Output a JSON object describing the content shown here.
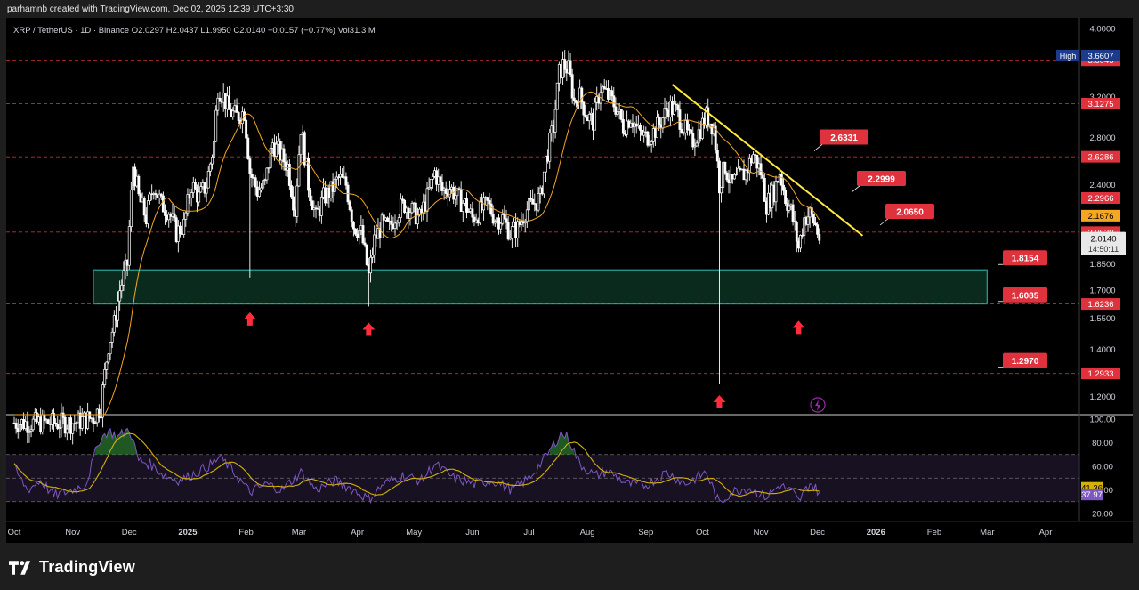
{
  "header": {
    "created_text": "parhamnb created with TradingView.com, Dec 02, 2025 12:39 UTC+3:30"
  },
  "symbol": {
    "legend": "XRP / TetherUS · 1D · Binance   O2.0297  H2.0437  L1.9950  C2.0140  −0.0157 (−0.77%)  Vol31.3 M"
  },
  "footer": {
    "brand": "TradingView"
  },
  "colors": {
    "background": "#000000",
    "candle": "#ffffff",
    "ma": "#f5a623",
    "trendline": "#ffeb3b",
    "level_line": "#e53935",
    "zone_border": "#26a69a",
    "zone_fill": "#0b2a1e",
    "label_red": "#e0323c",
    "rsi": "#7e57c2",
    "rsi_ma": "#d4b106",
    "rsi_band": "#2a1f3d"
  },
  "chart_data": [
    {
      "type": "candlestick",
      "pane": "price",
      "title": "XRP / TetherUS · 1D · Binance",
      "y_scale": "log",
      "ylim": [
        1.13,
        4.0
      ],
      "y_ticks": [
        "4.0000",
        "3.2000",
        "2.8000",
        "2.4000",
        "1.8500",
        "1.7000",
        "1.5500",
        "1.4000",
        "1.2000"
      ],
      "x_ticks": [
        "Oct",
        "Nov",
        "Dec",
        "2025",
        "Feb",
        "Mar",
        "Apr",
        "May",
        "Jun",
        "Jul",
        "Aug",
        "Sep",
        "Oct",
        "Nov",
        "Dec",
        "2026",
        "Feb",
        "Mar",
        "Apr"
      ],
      "last_price": {
        "value": "2.0140",
        "countdown": "14:50:11"
      },
      "price_markers": [
        {
          "label": "High",
          "value": "3.6607"
        },
        {
          "value": "2.1676",
          "kind": "ma"
        }
      ],
      "close_series": [
        {
          "date": "2024-10-01",
          "close": 1.1
        },
        {
          "date": "2024-10-15",
          "close": 1.1
        },
        {
          "date": "2024-11-01",
          "close": 1.1
        },
        {
          "date": "2024-11-12",
          "close": 1.12
        },
        {
          "date": "2024-11-16",
          "close": 1.16
        },
        {
          "date": "2024-11-20",
          "close": 1.42
        },
        {
          "date": "2024-11-23",
          "close": 1.52
        },
        {
          "date": "2024-11-26",
          "close": 1.7
        },
        {
          "date": "2024-11-30",
          "close": 1.85
        },
        {
          "date": "2024-12-03",
          "close": 2.55
        },
        {
          "date": "2024-12-06",
          "close": 2.3
        },
        {
          "date": "2024-12-10",
          "close": 2.15
        },
        {
          "date": "2024-12-14",
          "close": 2.4
        },
        {
          "date": "2024-12-18",
          "close": 2.25
        },
        {
          "date": "2024-12-22",
          "close": 2.2
        },
        {
          "date": "2024-12-26",
          "close": 2.05
        },
        {
          "date": "2024-12-30",
          "close": 2.1
        },
        {
          "date": "2025-01-03",
          "close": 2.4
        },
        {
          "date": "2025-01-07",
          "close": 2.3
        },
        {
          "date": "2025-01-11",
          "close": 2.4
        },
        {
          "date": "2025-01-15",
          "close": 2.75
        },
        {
          "date": "2025-01-17",
          "close": 3.3
        },
        {
          "date": "2025-01-20",
          "close": 3.2
        },
        {
          "date": "2025-01-23",
          "close": 3.05
        },
        {
          "date": "2025-01-27",
          "close": 3.0
        },
        {
          "date": "2025-01-31",
          "close": 3.05
        },
        {
          "date": "2025-02-03",
          "close": 2.5
        },
        {
          "date": "2025-02-07",
          "close": 2.35
        },
        {
          "date": "2025-02-11",
          "close": 2.4
        },
        {
          "date": "2025-02-15",
          "close": 2.75
        },
        {
          "date": "2025-02-19",
          "close": 2.65
        },
        {
          "date": "2025-02-23",
          "close": 2.55
        },
        {
          "date": "2025-02-27",
          "close": 2.2
        },
        {
          "date": "2025-03-02",
          "close": 2.9
        },
        {
          "date": "2025-03-06",
          "close": 2.4
        },
        {
          "date": "2025-03-10",
          "close": 2.15
        },
        {
          "date": "2025-03-14",
          "close": 2.3
        },
        {
          "date": "2025-03-18",
          "close": 2.35
        },
        {
          "date": "2025-03-22",
          "close": 2.45
        },
        {
          "date": "2025-03-26",
          "close": 2.4
        },
        {
          "date": "2025-03-30",
          "close": 2.1
        },
        {
          "date": "2025-04-03",
          "close": 2.05
        },
        {
          "date": "2025-04-07",
          "close": 1.78
        },
        {
          "date": "2025-04-10",
          "close": 2.0
        },
        {
          "date": "2025-04-14",
          "close": 2.1
        },
        {
          "date": "2025-04-18",
          "close": 2.08
        },
        {
          "date": "2025-04-22",
          "close": 2.2
        },
        {
          "date": "2025-04-26",
          "close": 2.25
        },
        {
          "date": "2025-04-30",
          "close": 2.2
        },
        {
          "date": "2025-05-04",
          "close": 2.15
        },
        {
          "date": "2025-05-08",
          "close": 2.3
        },
        {
          "date": "2025-05-12",
          "close": 2.5
        },
        {
          "date": "2025-05-16",
          "close": 2.35
        },
        {
          "date": "2025-05-20",
          "close": 2.38
        },
        {
          "date": "2025-05-24",
          "close": 2.3
        },
        {
          "date": "2025-05-28",
          "close": 2.25
        },
        {
          "date": "2025-06-01",
          "close": 2.15
        },
        {
          "date": "2025-06-05",
          "close": 2.2
        },
        {
          "date": "2025-06-09",
          "close": 2.25
        },
        {
          "date": "2025-06-13",
          "close": 2.15
        },
        {
          "date": "2025-06-17",
          "close": 2.15
        },
        {
          "date": "2025-06-21",
          "close": 2.05
        },
        {
          "date": "2025-06-25",
          "close": 2.08
        },
        {
          "date": "2025-06-29",
          "close": 2.2
        },
        {
          "date": "2025-07-03",
          "close": 2.25
        },
        {
          "date": "2025-07-07",
          "close": 2.3
        },
        {
          "date": "2025-07-10",
          "close": 2.6
        },
        {
          "date": "2025-07-14",
          "close": 2.9
        },
        {
          "date": "2025-07-17",
          "close": 3.45
        },
        {
          "date": "2025-07-19",
          "close": 3.55
        },
        {
          "date": "2025-07-22",
          "close": 3.5
        },
        {
          "date": "2025-07-25",
          "close": 3.15
        },
        {
          "date": "2025-07-28",
          "close": 3.2
        },
        {
          "date": "2025-08-01",
          "close": 3.0
        },
        {
          "date": "2025-08-04",
          "close": 2.95
        },
        {
          "date": "2025-08-08",
          "close": 3.3
        },
        {
          "date": "2025-08-12",
          "close": 3.2
        },
        {
          "date": "2025-08-16",
          "close": 3.1
        },
        {
          "date": "2025-08-20",
          "close": 2.9
        },
        {
          "date": "2025-08-24",
          "close": 3.0
        },
        {
          "date": "2025-08-28",
          "close": 2.85
        },
        {
          "date": "2025-09-01",
          "close": 2.8
        },
        {
          "date": "2025-09-05",
          "close": 2.85
        },
        {
          "date": "2025-09-09",
          "close": 2.95
        },
        {
          "date": "2025-09-13",
          "close": 3.1
        },
        {
          "date": "2025-09-17",
          "close": 3.05
        },
        {
          "date": "2025-09-21",
          "close": 2.9
        },
        {
          "date": "2025-09-25",
          "close": 2.75
        },
        {
          "date": "2025-09-29",
          "close": 2.85
        },
        {
          "date": "2025-10-03",
          "close": 3.0
        },
        {
          "date": "2025-10-07",
          "close": 2.9
        },
        {
          "date": "2025-10-10",
          "close": 2.4
        },
        {
          "date": "2025-10-13",
          "close": 2.55
        },
        {
          "date": "2025-10-16",
          "close": 2.4
        },
        {
          "date": "2025-10-20",
          "close": 2.45
        },
        {
          "date": "2025-10-24",
          "close": 2.5
        },
        {
          "date": "2025-10-28",
          "close": 2.65
        },
        {
          "date": "2025-11-01",
          "close": 2.5
        },
        {
          "date": "2025-11-04",
          "close": 2.25
        },
        {
          "date": "2025-11-08",
          "close": 2.35
        },
        {
          "date": "2025-11-11",
          "close": 2.5
        },
        {
          "date": "2025-11-14",
          "close": 2.3
        },
        {
          "date": "2025-11-17",
          "close": 2.2
        },
        {
          "date": "2025-11-21",
          "close": 1.95
        },
        {
          "date": "2025-11-24",
          "close": 2.15
        },
        {
          "date": "2025-11-27",
          "close": 2.18
        },
        {
          "date": "2025-11-30",
          "close": 2.1
        },
        {
          "date": "2025-12-02",
          "close": 2.014
        }
      ],
      "wicks": [
        {
          "date": "2025-02-03",
          "low": 1.77
        },
        {
          "date": "2025-04-07",
          "low": 1.61
        },
        {
          "date": "2025-10-10",
          "low": 1.25
        },
        {
          "date": "2025-07-18",
          "high": 3.66
        }
      ],
      "horizontal_levels": [
        {
          "value": "3.6045"
        },
        {
          "value": "3.1275"
        },
        {
          "value": "2.6286"
        },
        {
          "value": "2.2966"
        },
        {
          "value": "2.0539"
        },
        {
          "value": "1.6236"
        },
        {
          "value": "1.2933"
        }
      ],
      "level_labels": [
        {
          "value": "2.6331"
        },
        {
          "value": "2.2999"
        },
        {
          "value": "2.0650"
        },
        {
          "value": "1.8154"
        },
        {
          "value": "1.6085"
        },
        {
          "value": "1.2970"
        }
      ],
      "zone": {
        "top": 1.8154,
        "bottom": 1.6236,
        "from": "2024-11-12",
        "to": "2026-03-01"
      },
      "trendline": {
        "from": {
          "date": "2025-09-15",
          "value": 3.33
        },
        "to": {
          "date": "2025-12-25",
          "value": 2.03
        }
      },
      "arrows_up": [
        {
          "date": "2025-02-03"
        },
        {
          "date": "2025-04-07"
        },
        {
          "date": "2025-10-10"
        },
        {
          "date": "2025-11-21"
        }
      ]
    },
    {
      "type": "line",
      "pane": "rsi",
      "ylim": [
        20,
        100
      ],
      "y_ticks": [
        "100.00",
        "80.00",
        "60.00",
        "40.00",
        "20.00"
      ],
      "bands": [
        70,
        50,
        30
      ],
      "markers": [
        {
          "value": "41.36",
          "kind": "rsi_ma"
        },
        {
          "value": "37.97",
          "kind": "rsi"
        }
      ],
      "series": [
        {
          "values": [
            {
              "date": "2024-10-01",
              "rsi": 58
            },
            {
              "date": "2024-10-08",
              "rsi": 40
            },
            {
              "date": "2024-10-15",
              "rsi": 48
            },
            {
              "date": "2024-10-22",
              "rsi": 35
            },
            {
              "date": "2024-11-01",
              "rsi": 40
            },
            {
              "date": "2024-11-08",
              "rsi": 45
            },
            {
              "date": "2024-11-15",
              "rsi": 82
            },
            {
              "date": "2024-11-20",
              "rsi": 90
            },
            {
              "date": "2024-11-25",
              "rsi": 85
            },
            {
              "date": "2024-12-01",
              "rsi": 92
            },
            {
              "date": "2024-12-06",
              "rsi": 65
            },
            {
              "date": "2024-12-12",
              "rsi": 62
            },
            {
              "date": "2024-12-20",
              "rsi": 52
            },
            {
              "date": "2024-12-28",
              "rsi": 48
            },
            {
              "date": "2025-01-06",
              "rsi": 55
            },
            {
              "date": "2025-01-14",
              "rsi": 62
            },
            {
              "date": "2025-01-18",
              "rsi": 68
            },
            {
              "date": "2025-01-24",
              "rsi": 58
            },
            {
              "date": "2025-02-03",
              "rsi": 38
            },
            {
              "date": "2025-02-12",
              "rsi": 45
            },
            {
              "date": "2025-02-20",
              "rsi": 40
            },
            {
              "date": "2025-03-02",
              "rsi": 55
            },
            {
              "date": "2025-03-10",
              "rsi": 40
            },
            {
              "date": "2025-03-20",
              "rsi": 48
            },
            {
              "date": "2025-03-30",
              "rsi": 40
            },
            {
              "date": "2025-04-07",
              "rsi": 32
            },
            {
              "date": "2025-04-15",
              "rsi": 45
            },
            {
              "date": "2025-04-25",
              "rsi": 52
            },
            {
              "date": "2025-05-05",
              "rsi": 48
            },
            {
              "date": "2025-05-12",
              "rsi": 62
            },
            {
              "date": "2025-05-22",
              "rsi": 50
            },
            {
              "date": "2025-06-02",
              "rsi": 45
            },
            {
              "date": "2025-06-12",
              "rsi": 48
            },
            {
              "date": "2025-06-22",
              "rsi": 40
            },
            {
              "date": "2025-07-01",
              "rsi": 50
            },
            {
              "date": "2025-07-10",
              "rsi": 68
            },
            {
              "date": "2025-07-18",
              "rsi": 88
            },
            {
              "date": "2025-07-22",
              "rsi": 84
            },
            {
              "date": "2025-07-28",
              "rsi": 62
            },
            {
              "date": "2025-08-05",
              "rsi": 52
            },
            {
              "date": "2025-08-12",
              "rsi": 56
            },
            {
              "date": "2025-08-22",
              "rsi": 45
            },
            {
              "date": "2025-09-01",
              "rsi": 44
            },
            {
              "date": "2025-09-12",
              "rsi": 55
            },
            {
              "date": "2025-09-22",
              "rsi": 45
            },
            {
              "date": "2025-10-03",
              "rsi": 55
            },
            {
              "date": "2025-10-10",
              "rsi": 28
            },
            {
              "date": "2025-10-16",
              "rsi": 38
            },
            {
              "date": "2025-10-25",
              "rsi": 42
            },
            {
              "date": "2025-11-04",
              "rsi": 34
            },
            {
              "date": "2025-11-11",
              "rsi": 44
            },
            {
              "date": "2025-11-18",
              "rsi": 38
            },
            {
              "date": "2025-11-21",
              "rsi": 30
            },
            {
              "date": "2025-11-27",
              "rsi": 46
            },
            {
              "date": "2025-12-02",
              "rsi": 37.97
            }
          ]
        }
      ]
    }
  ]
}
